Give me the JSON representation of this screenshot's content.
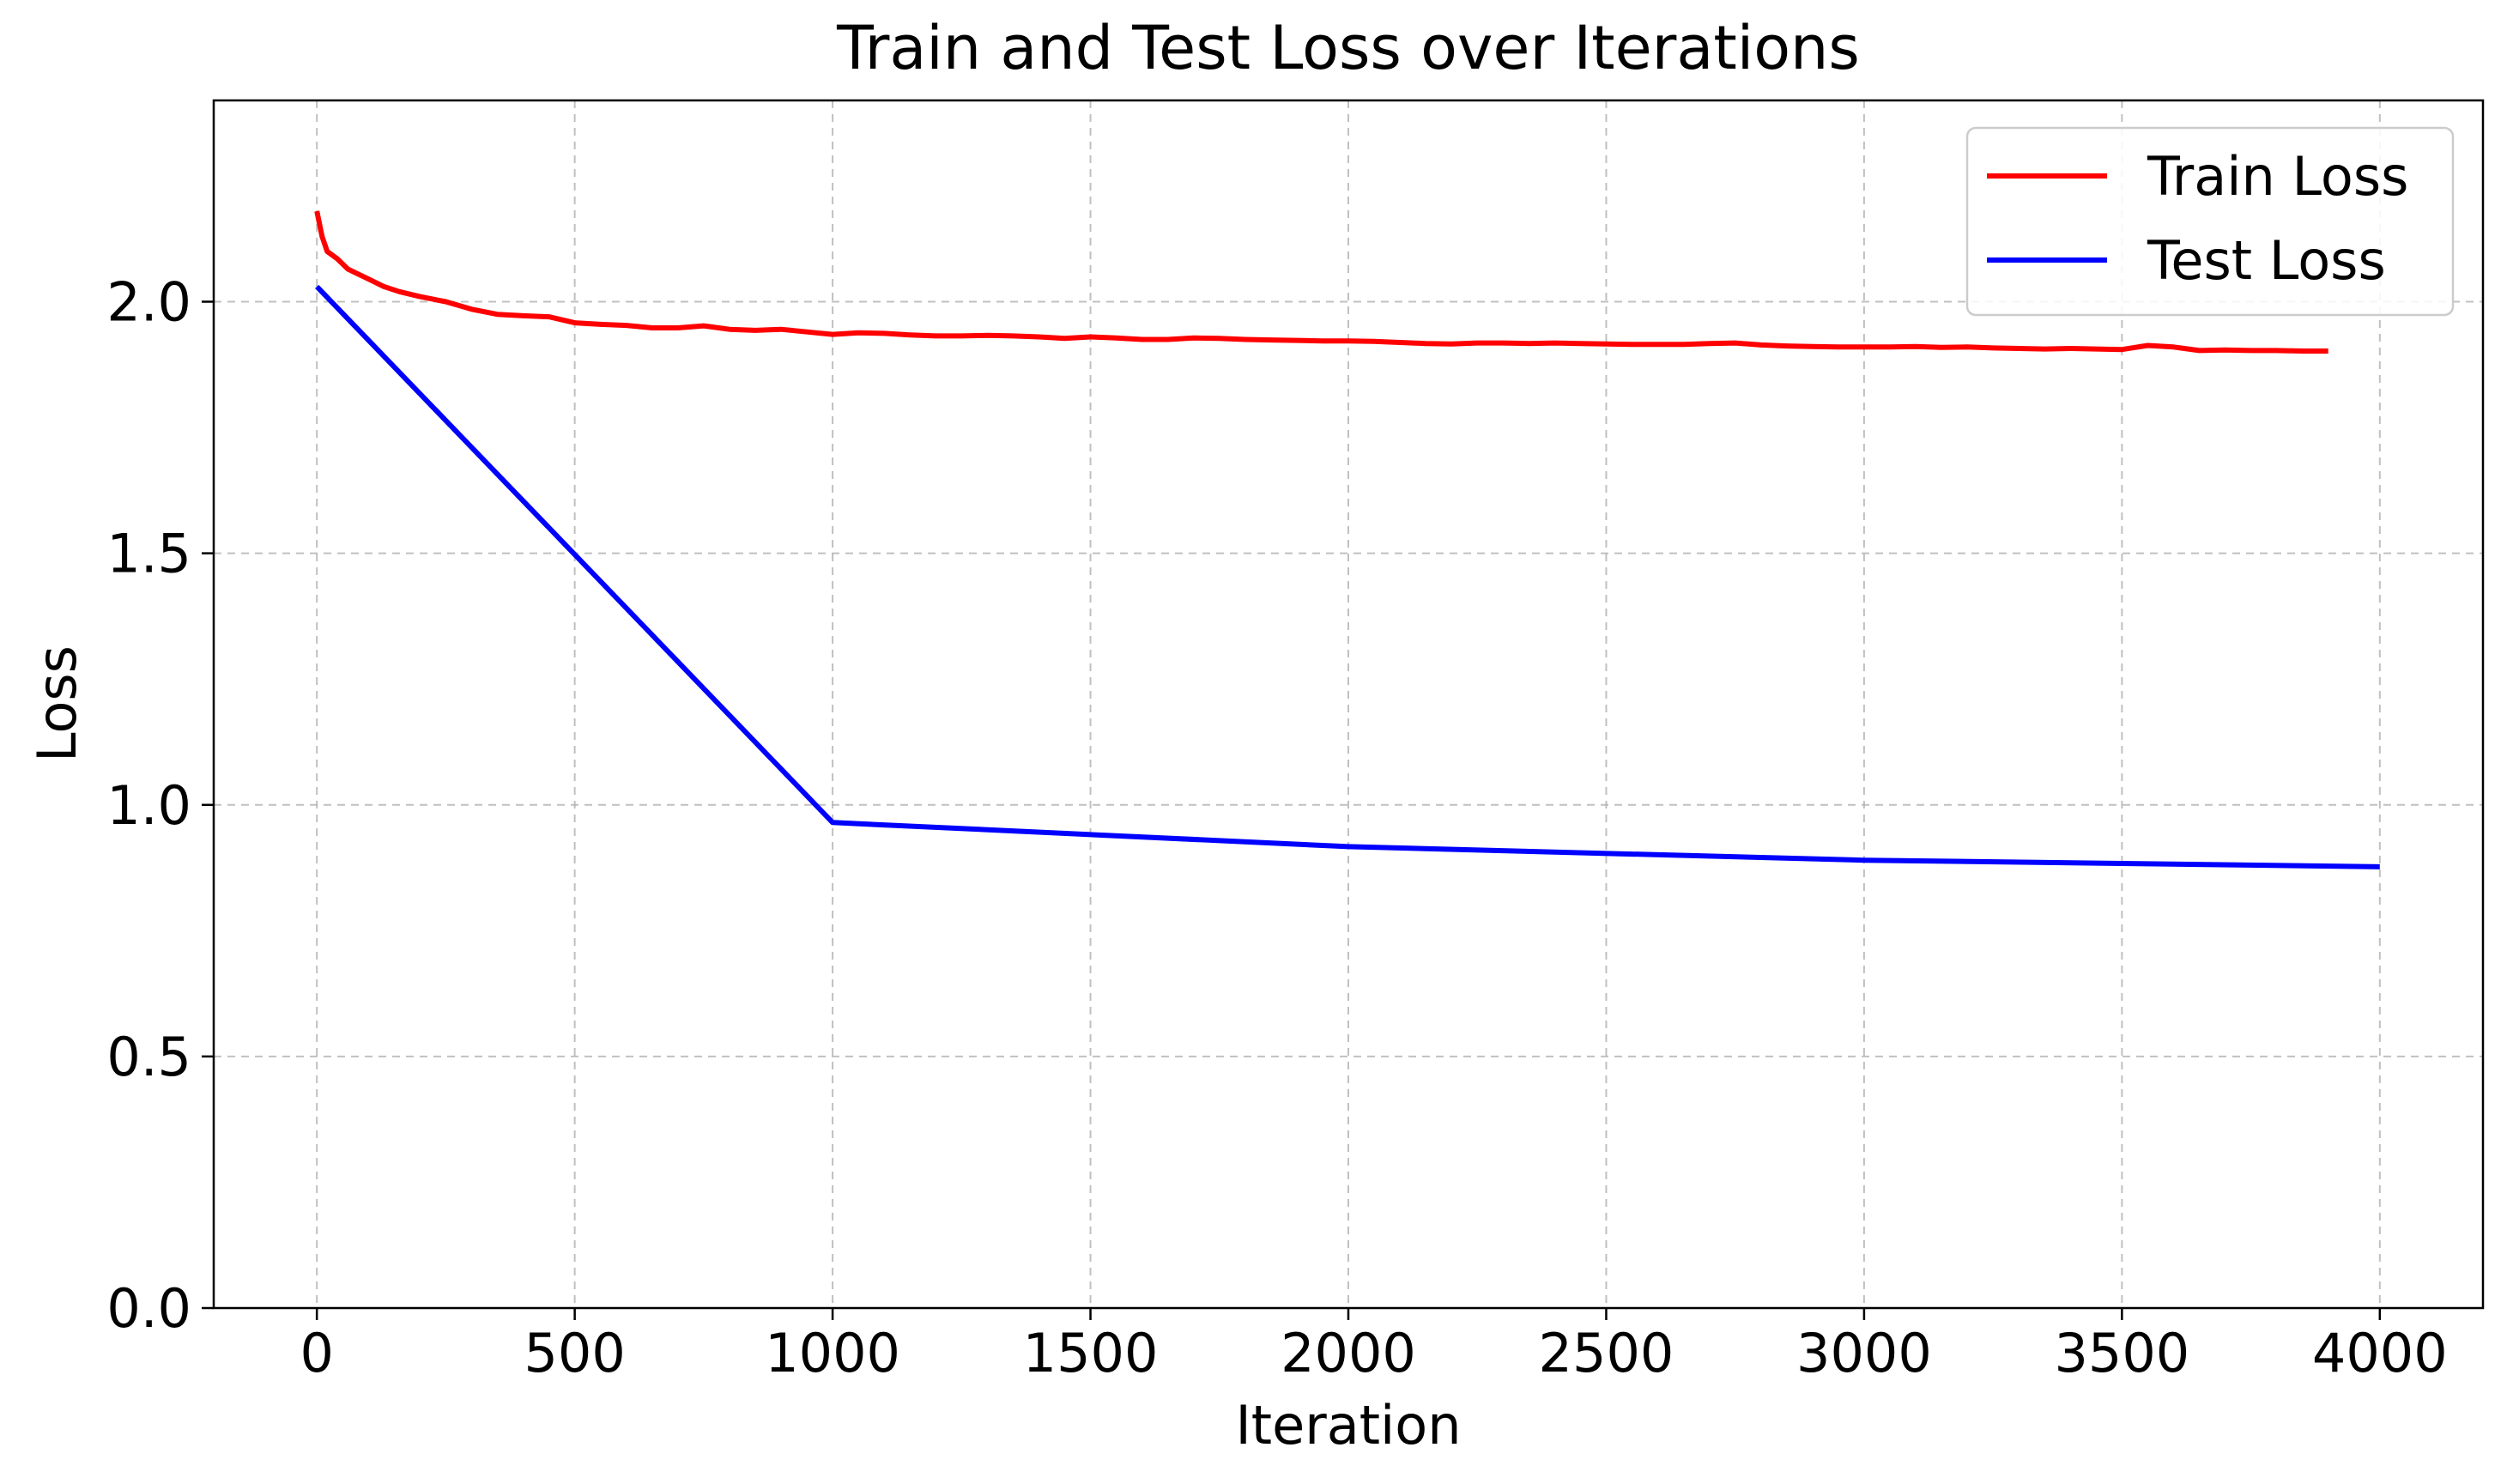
{
  "chart_data": {
    "type": "line",
    "title": "Train and Test Loss over Iterations",
    "xlabel": "Iteration",
    "ylabel": "Loss",
    "xlim": [
      -200,
      4200
    ],
    "ylim": [
      0.0,
      2.4
    ],
    "xticks": [
      0,
      500,
      1000,
      1500,
      2000,
      2500,
      3000,
      3500,
      4000
    ],
    "xtick_labels": [
      "0",
      "500",
      "1000",
      "1500",
      "2000",
      "2500",
      "3000",
      "3500",
      "4000"
    ],
    "yticks": [
      0.0,
      0.5,
      1.0,
      1.5,
      2.0
    ],
    "ytick_labels": [
      "0.0",
      "0.5",
      "1.0",
      "1.5",
      "2.0"
    ],
    "grid": true,
    "legend_position": "top-right",
    "series": [
      {
        "name": "Train Loss",
        "color": "#ff0000",
        "x": [
          0,
          10,
          20,
          40,
          60,
          80,
          100,
          130,
          160,
          200,
          250,
          300,
          350,
          400,
          450,
          500,
          550,
          600,
          650,
          700,
          750,
          800,
          850,
          900,
          950,
          1000,
          1050,
          1100,
          1150,
          1200,
          1250,
          1300,
          1350,
          1400,
          1450,
          1500,
          1550,
          1600,
          1650,
          1700,
          1750,
          1800,
          1850,
          1900,
          1950,
          2000,
          2050,
          2100,
          2150,
          2200,
          2250,
          2300,
          2350,
          2400,
          2450,
          2500,
          2550,
          2600,
          2650,
          2700,
          2750,
          2800,
          2850,
          2900,
          2950,
          3000,
          3050,
          3100,
          3150,
          3200,
          3250,
          3300,
          3350,
          3400,
          3450,
          3500,
          3550,
          3600,
          3650,
          3700,
          3750,
          3800,
          3850,
          3900
        ],
        "y": [
          2.18,
          2.13,
          2.1,
          2.085,
          2.065,
          2.055,
          2.045,
          2.03,
          2.02,
          2.01,
          2.0,
          1.985,
          1.975,
          1.972,
          1.97,
          1.958,
          1.955,
          1.953,
          1.948,
          1.948,
          1.952,
          1.945,
          1.943,
          1.945,
          1.94,
          1.935,
          1.938,
          1.937,
          1.934,
          1.932,
          1.932,
          1.933,
          1.932,
          1.93,
          1.927,
          1.93,
          1.928,
          1.925,
          1.925,
          1.928,
          1.927,
          1.925,
          1.924,
          1.923,
          1.922,
          1.922,
          1.921,
          1.919,
          1.917,
          1.916,
          1.918,
          1.918,
          1.917,
          1.918,
          1.917,
          1.916,
          1.915,
          1.915,
          1.915,
          1.917,
          1.918,
          1.914,
          1.912,
          1.911,
          1.91,
          1.91,
          1.91,
          1.911,
          1.909,
          1.91,
          1.908,
          1.907,
          1.906,
          1.907,
          1.906,
          1.905,
          1.913,
          1.91,
          1.903,
          1.904,
          1.903,
          1.903,
          1.902,
          1.902
        ]
      },
      {
        "name": "Test Loss",
        "color": "#0000ff",
        "x": [
          0,
          1000,
          2000,
          3000,
          4000
        ],
        "y": [
          2.03,
          0.965,
          0.917,
          0.89,
          0.877
        ]
      }
    ]
  }
}
